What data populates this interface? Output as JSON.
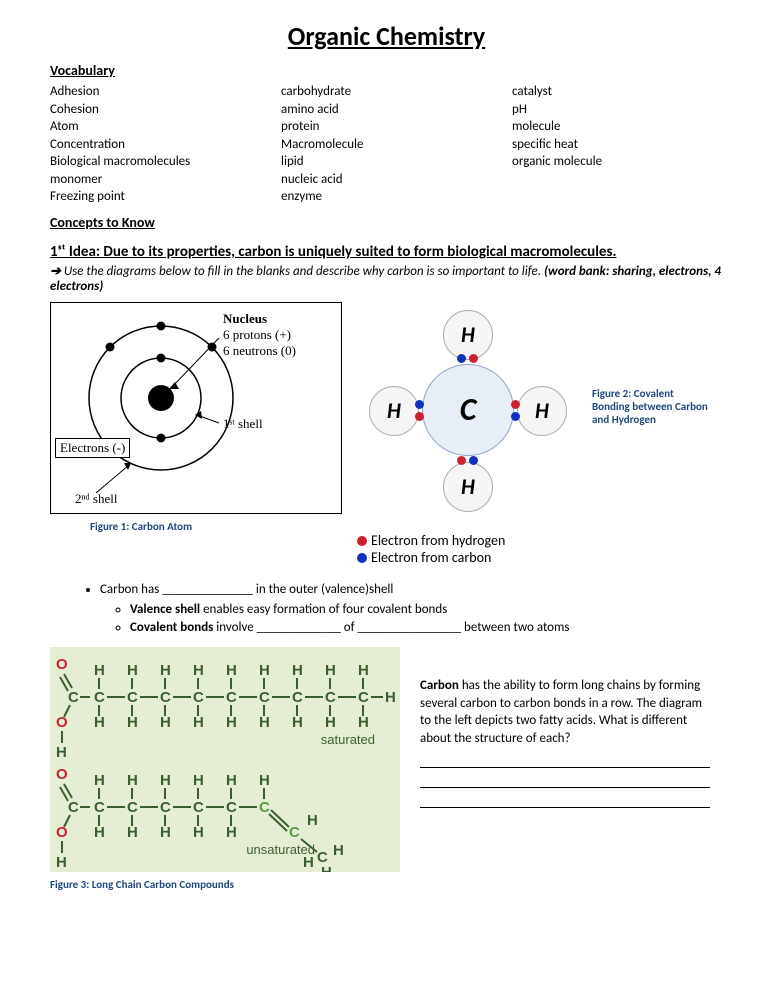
{
  "title": "Organic Chemistry",
  "vocab_heading": "Vocabulary",
  "vocab": {
    "col1": [
      "Adhesion",
      "Cohesion",
      "Atom",
      "Concentration",
      "Biological macromolecules",
      "monomer",
      "Freezing point"
    ],
    "col2": [
      "carbohydrate",
      "amino acid",
      "protein",
      "Macromolecule",
      "lipid",
      "nucleic acid",
      "enzyme"
    ],
    "col3": [
      "catalyst",
      "pH",
      "molecule",
      "specific heat",
      "organic molecule"
    ]
  },
  "concepts_heading": "Concepts to Know",
  "idea1": {
    "heading": "1ˢᵗ  Idea:  Due to its properties, carbon is uniquely suited to form biological macromolecules.",
    "instruction_arrow": "➔",
    "instruction": "Use the diagrams below to fill in the blanks and describe why carbon is so important to life.",
    "wordbank": "(word bank: sharing, electrons, 4 electrons)"
  },
  "figure1": {
    "caption": "Figure 1: Carbon Atom",
    "nucleus_label": "Nucleus",
    "nucleus_line1": "6 protons (+)",
    "nucleus_line2": "6 neutrons (0)",
    "electrons_label": "Electrons (-)",
    "shell1_label": "1ˢᵗ shell",
    "shell2_label": "2ⁿᵈ shell",
    "colors": {
      "stroke": "#000000",
      "fill": "#000000"
    }
  },
  "figure2": {
    "caption": "Figure 2: Covalent Bonding between Carbon and Hydrogen",
    "atoms": {
      "C": "C",
      "H": "H"
    },
    "colors": {
      "carbon_fill": "#e8eef5",
      "carbon_stroke": "#8aa4c8",
      "h_fill": "#f5f5f5",
      "h_stroke": "#aaaaaa",
      "electron_h": "#d02030",
      "electron_c": "#1030c0"
    },
    "legend_h": "Electron from hydrogen",
    "legend_c": "Electron from carbon"
  },
  "bullets": {
    "line1_a": "Carbon has ",
    "line1_b": " in the outer (valence)shell",
    "sub1_bold": "Valence shell",
    "sub1_rest": " enables easy formation of four covalent bonds",
    "sub2_bold": "Covalent bonds",
    "sub2_mid": " involve ",
    "sub2_mid2": " of ",
    "sub2_end": " between two atoms",
    "blank": "______________",
    "blank2": "_____________",
    "blank3": "________________"
  },
  "figure3": {
    "caption": "Figure 3: Long Chain Carbon Compounds",
    "saturated_label": "saturated",
    "unsaturated_label": "unsaturated",
    "colors": {
      "background": "#e5edd5",
      "oxygen": "#d02030",
      "element": "#3a5f2e",
      "bond": "#3a5f2e",
      "double_c": "#5a9a3e"
    }
  },
  "carbon_text": {
    "para_bold": "Carbon",
    "para_rest": " has the ability to form long chains by forming several carbon to carbon bonds in a row. The diagram to the left depicts two fatty acids.  What is different about the structure of each?"
  }
}
